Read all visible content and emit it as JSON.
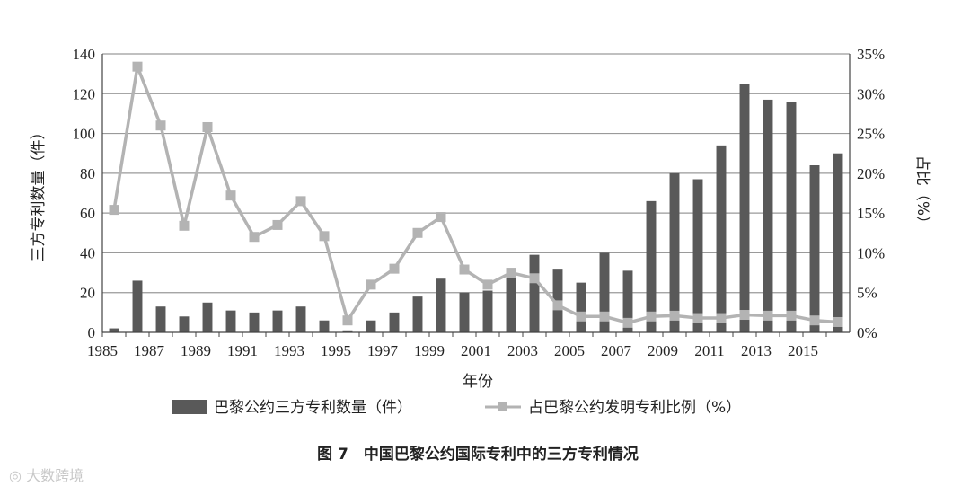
{
  "caption": "图 7　中国巴黎公约国际专利中的三方专利情况",
  "watermark": "大数跨境",
  "chart_data": {
    "type": "bar+line",
    "categories": [
      1985,
      1986,
      1987,
      1988,
      1989,
      1990,
      1991,
      1992,
      1993,
      1994,
      1995,
      1996,
      1997,
      1998,
      1999,
      2000,
      2001,
      2002,
      2003,
      2004,
      2005,
      2006,
      2007,
      2008,
      2009,
      2010,
      2011,
      2012,
      2013,
      2014,
      2015,
      2016
    ],
    "x_tick_labels": [
      "1985",
      "1987",
      "1989",
      "1991",
      "1993",
      "1995",
      "1997",
      "1999",
      "2001",
      "2003",
      "2005",
      "2007",
      "2009",
      "2011",
      "2013",
      "2015"
    ],
    "xlabel": "年份",
    "ylabel_left": "三方专利数量（件）",
    "ylabel_right": "占比（%）",
    "ylim_left": [
      0,
      140
    ],
    "yticks_left": [
      "0",
      "20",
      "40",
      "60",
      "80",
      "100",
      "120",
      "140"
    ],
    "ylim_right": [
      0,
      35
    ],
    "yticks_right": [
      "0%",
      "5%",
      "10%",
      "15%",
      "20%",
      "25%",
      "30%",
      "35%"
    ],
    "grid": true,
    "legend_position": "bottom",
    "series": [
      {
        "name": "巴黎公约三方专利数量（件）",
        "type": "bar",
        "axis": "left",
        "color": "#595959",
        "values": [
          2,
          26,
          13,
          8,
          15,
          11,
          10,
          11,
          13,
          6,
          1,
          6,
          10,
          18,
          27,
          20,
          21,
          30,
          39,
          32,
          25,
          40,
          31,
          66,
          80,
          77,
          94,
          125,
          117,
          116,
          84,
          90
        ]
      },
      {
        "name": "占巴黎公约发明专利比例（%）",
        "type": "line",
        "axis": "right",
        "color": "#b3b3b3",
        "values": [
          15.4,
          33.4,
          26.0,
          13.4,
          25.8,
          17.2,
          12.0,
          13.5,
          16.5,
          12.1,
          1.5,
          6.0,
          8.0,
          12.5,
          14.5,
          7.9,
          6.0,
          7.5,
          6.8,
          3.4,
          2.0,
          2.0,
          1.2,
          2.0,
          2.1,
          1.8,
          1.8,
          2.2,
          2.1,
          2.1,
          1.5,
          1.3
        ]
      }
    ]
  }
}
